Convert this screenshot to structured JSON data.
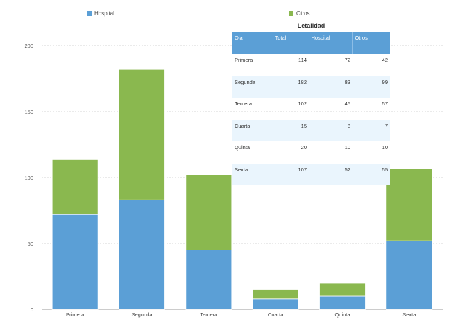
{
  "legend": [
    {
      "label": "Hospital",
      "color": "#5b9fd6"
    },
    {
      "label": "Otros",
      "color": "#8ab84f"
    }
  ],
  "chart_data": {
    "type": "bar",
    "stacked": true,
    "categories": [
      "Primera",
      "Segunda",
      "Tercera",
      "Cuarta",
      "Quinta",
      "Sexta"
    ],
    "series": [
      {
        "name": "Hospital",
        "values": [
          72,
          83,
          45,
          8,
          10,
          52
        ],
        "color": "#5b9fd6"
      },
      {
        "name": "Otros",
        "values": [
          42,
          99,
          57,
          7,
          10,
          55
        ],
        "color": "#8ab84f"
      }
    ],
    "ylim": [
      0,
      200
    ],
    "yticks": [
      0,
      50,
      100,
      150,
      200
    ],
    "grid": true,
    "legend_position": "top"
  },
  "table": {
    "title": "Letalidad",
    "headers": [
      "Ola",
      "Total",
      "Hospital",
      "Otros"
    ],
    "rows": [
      [
        "Primera",
        "114",
        "72",
        "42"
      ],
      [
        "Segunda",
        "182",
        "83",
        "99"
      ],
      [
        "Tercera",
        "102",
        "45",
        "57"
      ],
      [
        "Cuarta",
        "15",
        "8",
        "7"
      ],
      [
        "Quinta",
        "20",
        "10",
        "10"
      ],
      [
        "Sexta",
        "107",
        "52",
        "55"
      ]
    ]
  }
}
